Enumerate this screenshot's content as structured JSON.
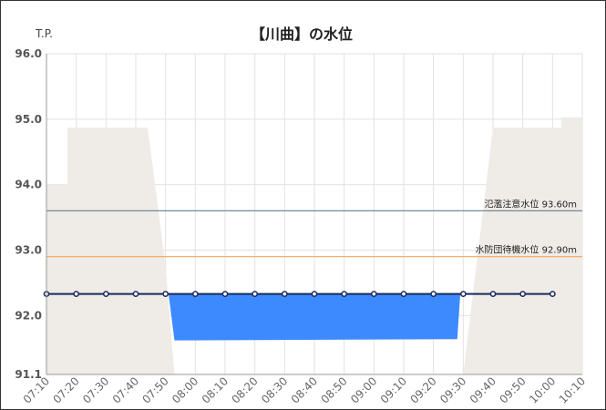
{
  "chart_data": {
    "type": "line",
    "title": "【川曲】の水位",
    "ylabel": "T.P.",
    "ylim": [
      91.1,
      96.0
    ],
    "yticks": [
      "96.0",
      "95.0",
      "94.0",
      "93.0",
      "92.0",
      "91.1"
    ],
    "ytick_values": [
      96.0,
      95.0,
      94.0,
      93.0,
      92.0,
      91.1
    ],
    "x_ticks": [
      "07:10",
      "07:20",
      "07:30",
      "07:40",
      "07:50",
      "08:00",
      "08:10",
      "08:20",
      "08:30",
      "08:40",
      "08:50",
      "09:00",
      "09:10",
      "09:20",
      "09:30",
      "09:40",
      "09:50",
      "10:00",
      "10:10"
    ],
    "grid": true,
    "series": [
      {
        "kind": "line",
        "color": "#1a2a5a",
        "x": [
          "07:10",
          "07:20",
          "07:30",
          "07:40",
          "07:50",
          "08:00",
          "08:10",
          "08:20",
          "08:30",
          "08:40",
          "08:50",
          "09:00",
          "09:10",
          "09:20",
          "09:30",
          "09:40",
          "09:50",
          "10:00"
        ],
        "values": [
          92.33,
          92.33,
          92.33,
          92.33,
          92.33,
          92.33,
          92.33,
          92.33,
          92.33,
          92.33,
          92.33,
          92.33,
          92.33,
          92.33,
          92.33,
          92.33,
          92.33,
          92.33
        ]
      }
    ],
    "bank_area": {
      "color": "#efebe6",
      "points": [
        [
          "07:10",
          94.0
        ],
        [
          "07:17",
          94.0
        ],
        [
          "07:17",
          94.87
        ],
        [
          "07:44",
          94.87
        ],
        [
          "07:50",
          92.75
        ],
        [
          "07:53",
          91.1
        ],
        [
          "09:30",
          91.1
        ],
        [
          "09:40",
          94.87
        ],
        [
          "10:03",
          94.87
        ],
        [
          "10:03",
          95.03
        ],
        [
          "10:10",
          95.03
        ]
      ]
    },
    "riverbed_area": {
      "color": "#3d8aff",
      "points": [
        [
          "07:51",
          92.33
        ],
        [
          "09:29",
          92.33
        ],
        [
          "09:28",
          91.64
        ],
        [
          "07:53",
          91.62
        ]
      ]
    },
    "reference_lines": [
      {
        "label": "氾濫注意水位 93.60m",
        "value": 93.6,
        "color": "#6f8a9a"
      },
      {
        "label": "水防団待機水位 92.90m",
        "value": 92.9,
        "color": "#f5a55a"
      }
    ]
  }
}
